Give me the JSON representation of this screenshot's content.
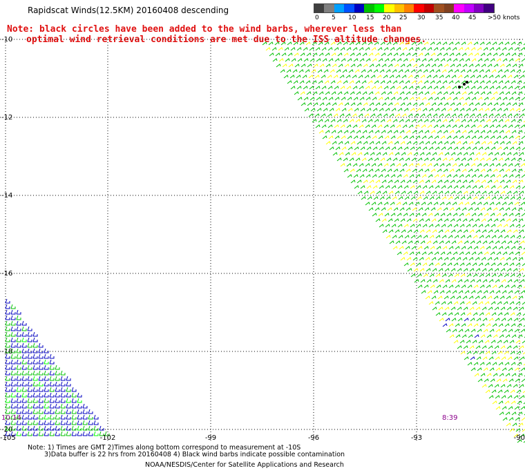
{
  "title": "Rapidscat Winds(12.5KM) 20160408 descending",
  "note": {
    "line1": "Note: black circles have been added to the wind barbs, wherever less than",
    "line2": "optimal wind retrieval conditions are met due to the ISS altitude changes."
  },
  "colorbar": {
    "colors": [
      "#404040",
      "#808080",
      "#00a0ff",
      "#0050ff",
      "#0000c0",
      "#00c000",
      "#00ff00",
      "#ffff00",
      "#ffc000",
      "#ff8000",
      "#ff0000",
      "#c00000",
      "#a05020",
      "#804020",
      "#ff00ff",
      "#c000ff",
      "#8000c0",
      "#400080"
    ],
    "labels": [
      "0",
      "5",
      "10",
      "15",
      "20",
      "25",
      "30",
      "35",
      "40",
      "45",
      ">50 knots"
    ]
  },
  "axes": {
    "lat_labels": [
      "-10",
      "-12",
      "-14",
      "-16",
      "-18",
      "-20"
    ],
    "lon_labels": [
      "-105",
      "-102",
      "-99",
      "-96",
      "-93",
      "-90"
    ]
  },
  "swaths": {
    "east_time": "8:39",
    "west_time": "10:14"
  },
  "footer": {
    "line1": "Note: 1) Times are GMT 2)Times along bottom correspond to measurement at -10S",
    "line2": "3)Data buffer is 22 hrs from 20160408 4) Black wind barbs indicate possible contamination",
    "line3": "NOAA/NESDIS/Center for Satellite Applications and Research"
  }
}
